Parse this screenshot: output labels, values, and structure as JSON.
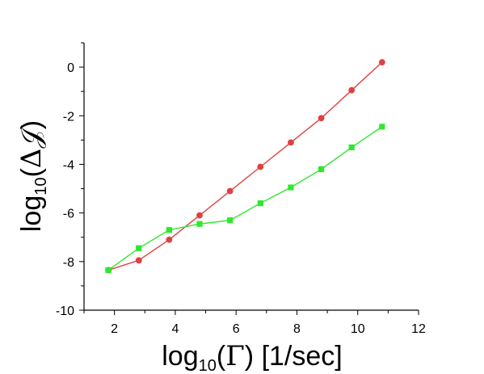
{
  "chart_data": {
    "type": "line",
    "xlabel": {
      "prefix": "log",
      "sub": "10",
      "open": "(",
      "symbol": "Γ",
      "close": ")",
      "unit": " [1/sec]"
    },
    "ylabel": {
      "prefix": "log",
      "sub": "10",
      "open": "(",
      "symbol": "Δ𝒥",
      "close": ")"
    },
    "xlim": [
      1,
      12
    ],
    "ylim": [
      -10,
      1
    ],
    "xticks": [
      2,
      4,
      6,
      8,
      10,
      12
    ],
    "yticks": [
      0,
      -2,
      -4,
      -6,
      -8,
      -10
    ],
    "x_minor_step": 1,
    "y_minor_step": 1,
    "grid": false,
    "legend": "none",
    "series": [
      {
        "color": "#e0403f",
        "marker": "circle",
        "points": [
          [
            1.8,
            -8.35
          ],
          [
            2.8,
            -7.95
          ],
          [
            3.8,
            -7.1
          ],
          [
            4.8,
            -6.1
          ],
          [
            5.8,
            -5.1
          ],
          [
            6.8,
            -4.1
          ],
          [
            7.8,
            -3.1
          ],
          [
            8.8,
            -2.1
          ],
          [
            9.8,
            -0.95
          ],
          [
            10.8,
            0.2
          ]
        ]
      },
      {
        "color": "#2ee82e",
        "marker": "square",
        "points": [
          [
            1.8,
            -8.35
          ],
          [
            2.8,
            -7.45
          ],
          [
            3.8,
            -6.7
          ],
          [
            4.8,
            -6.45
          ],
          [
            5.8,
            -6.3
          ],
          [
            6.8,
            -5.6
          ],
          [
            7.8,
            -4.95
          ],
          [
            8.8,
            -4.2
          ],
          [
            9.8,
            -3.3
          ],
          [
            10.8,
            -2.45
          ]
        ]
      }
    ]
  }
}
